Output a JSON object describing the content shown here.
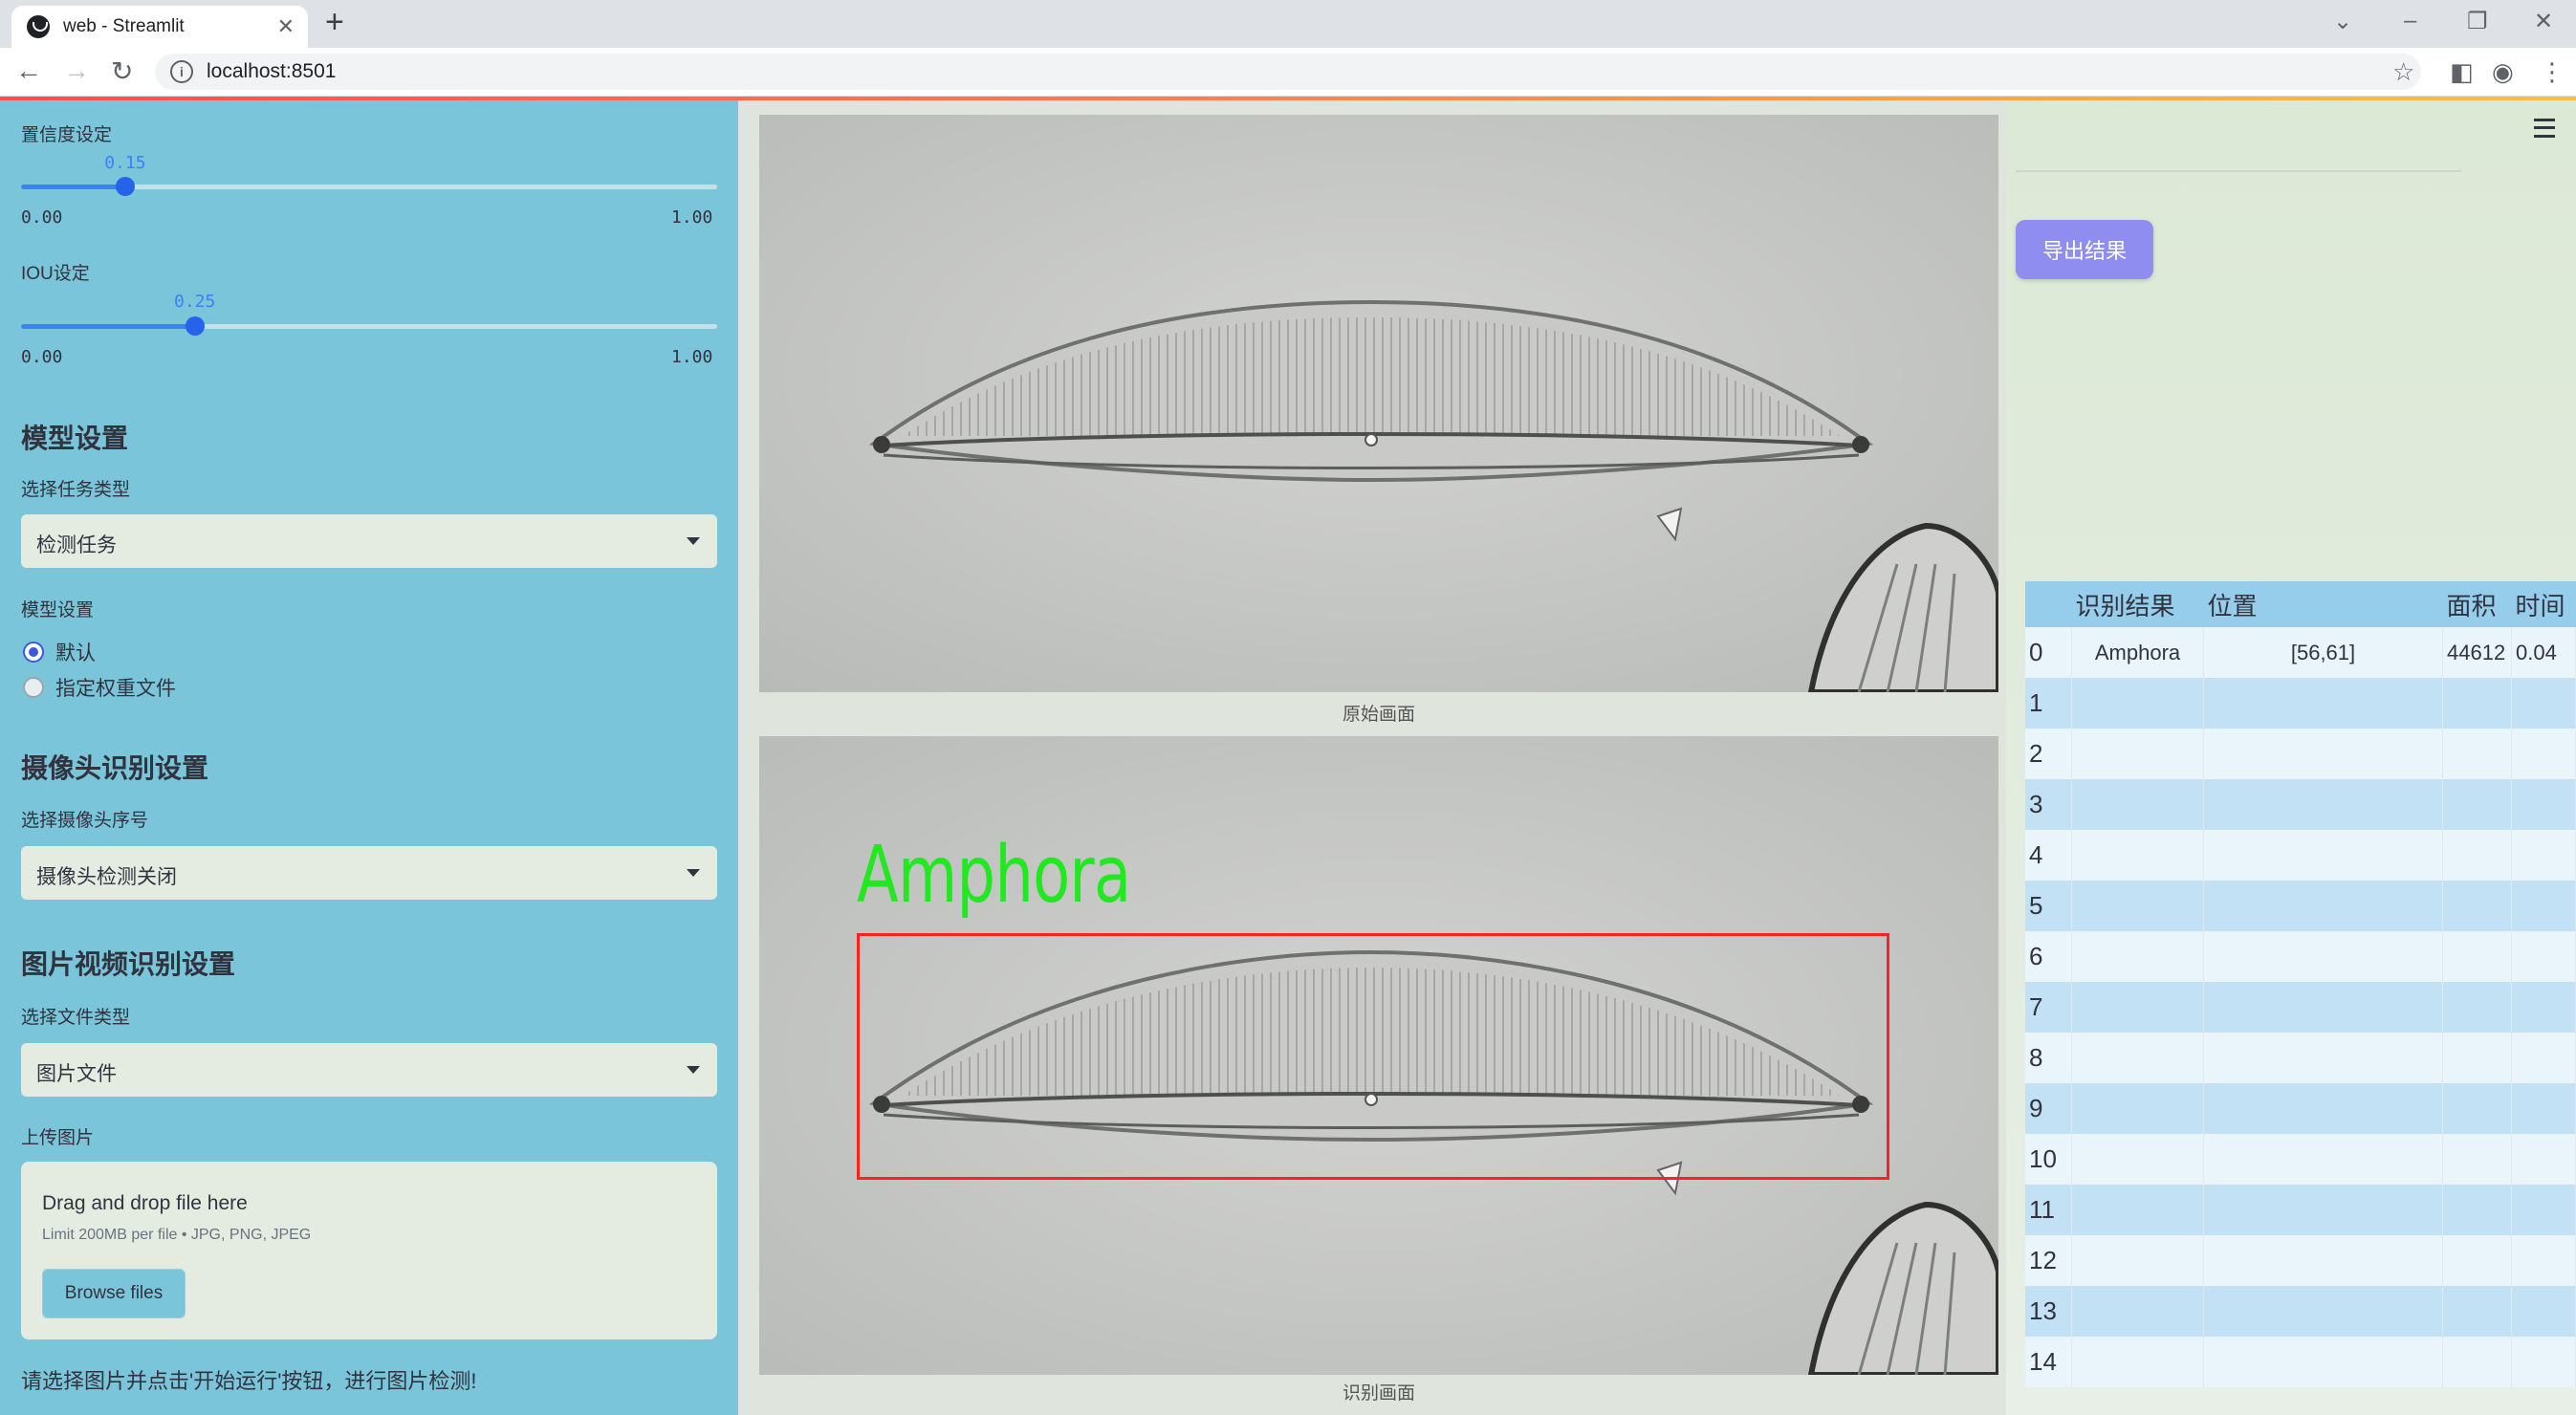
{
  "browser": {
    "tab_title": "web - Streamlit",
    "new_tab": "+",
    "url": "localhost:8501",
    "win_min": "–",
    "win_restore": "❐",
    "win_close": "✕",
    "tab_close": "✕",
    "chevron": "⌄"
  },
  "sidebar": {
    "confidence_label": "置信度设定",
    "confidence_value": "0.15",
    "confidence_fraction": 0.15,
    "confidence_min": "0.00",
    "confidence_max": "1.00",
    "iou_label": "IOU设定",
    "iou_value": "0.25",
    "iou_fraction": 0.25,
    "iou_min": "0.00",
    "iou_max": "1.00",
    "model_header": "模型设置",
    "task_type_label": "选择任务类型",
    "task_type_value": "检测任务",
    "model_settings_label": "模型设置",
    "radio_default": "默认",
    "radio_weights": "指定权重文件",
    "camera_header": "摄像头识别设置",
    "camera_select_label": "选择摄像头序号",
    "camera_select_value": "摄像头检测关闭",
    "media_header": "图片视频识别设置",
    "file_type_label": "选择文件类型",
    "file_type_value": "图片文件",
    "upload_label": "上传图片",
    "upload_title": "Drag and drop file here",
    "upload_limit": "Limit 200MB per file • JPG, PNG, JPEG",
    "browse_button": "Browse files",
    "bottom_note": "请选择图片并点击'开始运行'按钮，进行图片检测!"
  },
  "main": {
    "original_caption": "原始画面",
    "result_caption": "识别画面",
    "detection_label": "Amphora"
  },
  "right": {
    "export_button": "导出结果",
    "table": {
      "headers": [
        "",
        "识别结果",
        "位置",
        "面积",
        "时间"
      ],
      "rows": [
        [
          "0",
          "Amphora",
          "[56,61]",
          "44612",
          "0.04"
        ],
        [
          "1",
          "",
          "",
          "",
          ""
        ],
        [
          "2",
          "",
          "",
          "",
          ""
        ],
        [
          "3",
          "",
          "",
          "",
          ""
        ],
        [
          "4",
          "",
          "",
          "",
          ""
        ],
        [
          "5",
          "",
          "",
          "",
          ""
        ],
        [
          "6",
          "",
          "",
          "",
          ""
        ],
        [
          "7",
          "",
          "",
          "",
          ""
        ],
        [
          "8",
          "",
          "",
          "",
          ""
        ],
        [
          "9",
          "",
          "",
          "",
          ""
        ],
        [
          "10",
          "",
          "",
          "",
          ""
        ],
        [
          "11",
          "",
          "",
          "",
          ""
        ],
        [
          "12",
          "",
          "",
          "",
          ""
        ],
        [
          "13",
          "",
          "",
          "",
          ""
        ],
        [
          "14",
          "",
          "",
          "",
          ""
        ]
      ]
    }
  },
  "colors": {
    "sidebar_bg": "#7ac5d9",
    "slider_accent": "#3b82f6",
    "export_button": "#8f8df0",
    "detection_box": "#ff2020",
    "detection_text": "#22e822",
    "table_header": "#96cdea"
  },
  "icons": [
    "streamlit-favicon",
    "back-arrow-icon",
    "forward-arrow-icon",
    "reload-icon",
    "info-icon",
    "star-icon",
    "side-panel-icon",
    "profile-icon",
    "kebab-menu-icon",
    "hamburger-menu-icon",
    "dropdown-caret-icon"
  ]
}
